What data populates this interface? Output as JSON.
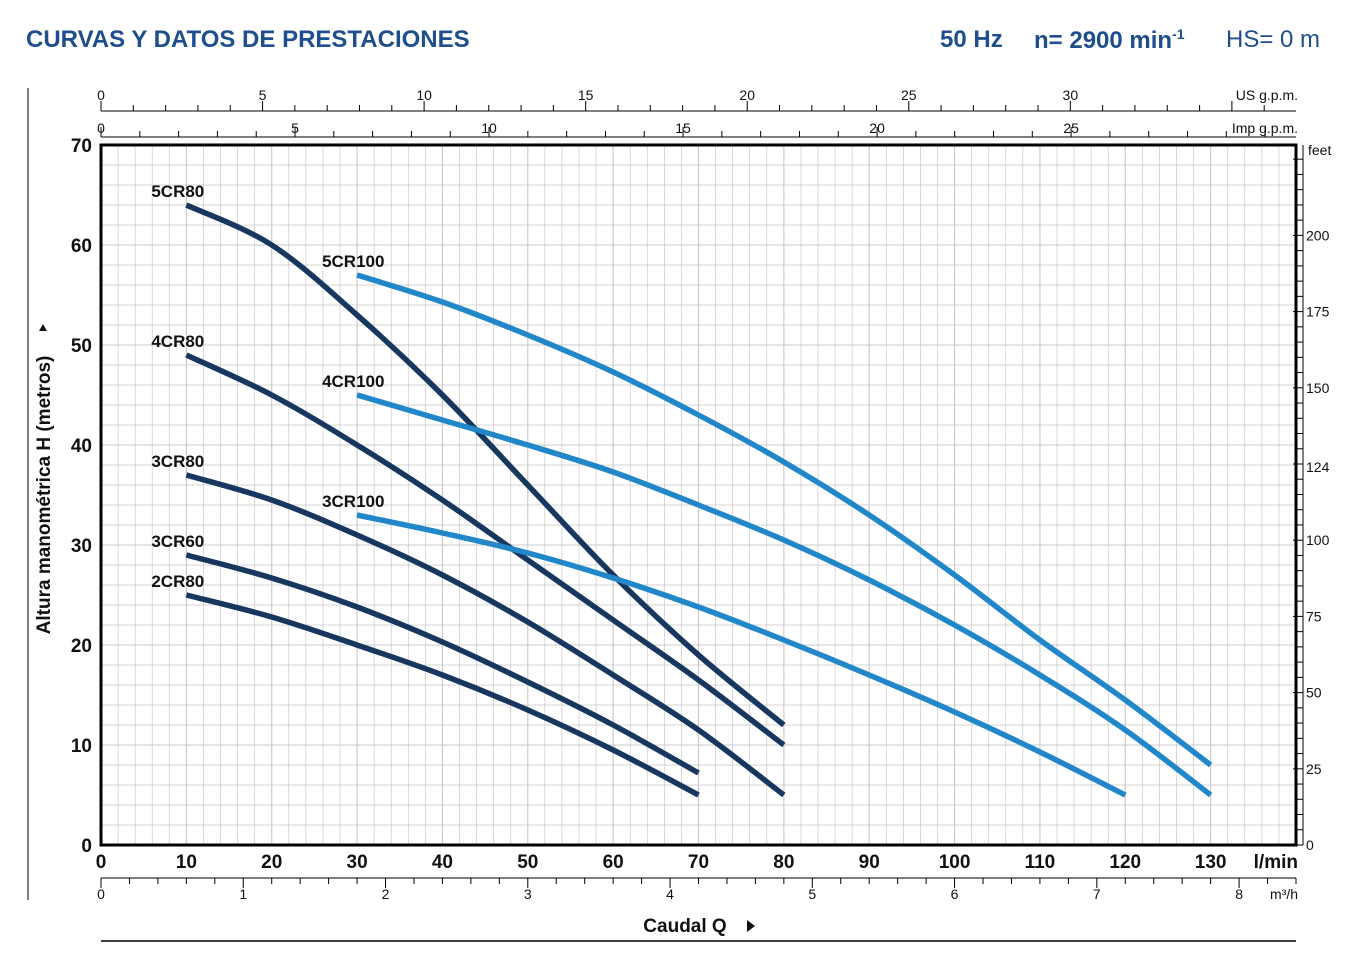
{
  "header": {
    "title": "CURVAS Y DATOS DE PRESTACIONES",
    "frequency": "50 Hz",
    "speed": "n= 2900 min",
    "speed_sup": "-1",
    "hs": "HS= 0 m"
  },
  "colors": {
    "header": "#1f4e8c",
    "cr80_series": "#17375e",
    "cr100_series": "#2287c8",
    "grid": "#c8c8c8",
    "axis": "#000000"
  },
  "chart_data": {
    "type": "line",
    "title": "",
    "xlabel": "Caudal Q",
    "ylabel": "Altura manométrica H (metros)",
    "x_unit": "l/min",
    "xlim": [
      0,
      140
    ],
    "ylim": [
      0,
      70
    ],
    "x_ticks": [
      0,
      10,
      20,
      30,
      40,
      50,
      60,
      70,
      80,
      90,
      100,
      110,
      120,
      130
    ],
    "y_ticks": [
      0,
      10,
      20,
      30,
      40,
      50,
      60,
      70
    ],
    "grid": true,
    "secondary_axes": {
      "us_gpm": {
        "label": "US g.p.m.",
        "ticks": [
          0,
          5,
          10,
          15,
          20,
          25,
          30
        ]
      },
      "imp_gpm": {
        "label": "Imp g.p.m.",
        "ticks": [
          0,
          5,
          10,
          15,
          20,
          25
        ]
      },
      "m3h": {
        "label": "m³/h",
        "ticks": [
          0,
          1,
          2,
          3,
          4,
          5,
          6,
          7,
          8
        ]
      },
      "feet": {
        "label": "feet",
        "ticks": [
          0,
          25,
          50,
          75,
          100,
          124,
          150,
          175,
          200
        ]
      }
    },
    "series": [
      {
        "name": "5CR80",
        "group": "cr80",
        "x": [
          10,
          20,
          30,
          40,
          50,
          60,
          70,
          80
        ],
        "y": [
          64,
          60,
          53,
          45,
          36,
          27,
          19,
          12
        ]
      },
      {
        "name": "4CR80",
        "group": "cr80",
        "x": [
          10,
          20,
          30,
          40,
          50,
          60,
          70,
          80
        ],
        "y": [
          49,
          45,
          40,
          34.5,
          28.5,
          22.5,
          16.5,
          10
        ]
      },
      {
        "name": "3CR80",
        "group": "cr80",
        "x": [
          10,
          20,
          30,
          40,
          50,
          60,
          70,
          80
        ],
        "y": [
          37,
          34.5,
          31,
          27,
          22.3,
          17,
          11.5,
          5
        ]
      },
      {
        "name": "3CR60",
        "group": "cr80",
        "x": [
          10,
          20,
          30,
          40,
          50,
          60,
          70
        ],
        "y": [
          29,
          26.7,
          23.8,
          20.3,
          16.3,
          12,
          7.2
        ]
      },
      {
        "name": "2CR80",
        "group": "cr80",
        "x": [
          10,
          20,
          30,
          40,
          50,
          60,
          70
        ],
        "y": [
          25,
          22.8,
          20,
          17,
          13.5,
          9.5,
          5
        ]
      },
      {
        "name": "5CR100",
        "group": "cr100",
        "x": [
          30,
          40,
          50,
          60,
          70,
          80,
          90,
          100,
          110,
          120,
          130
        ],
        "y": [
          57,
          54.3,
          51,
          47.3,
          43,
          38.3,
          33,
          27,
          20.5,
          14.5,
          8
        ]
      },
      {
        "name": "4CR100",
        "group": "cr100",
        "x": [
          30,
          40,
          50,
          60,
          70,
          80,
          90,
          100,
          110,
          120,
          130
        ],
        "y": [
          45,
          42.5,
          40,
          37.3,
          34,
          30.5,
          26.5,
          22,
          17,
          11.5,
          5
        ]
      },
      {
        "name": "3CR100",
        "group": "cr100",
        "x": [
          30,
          40,
          50,
          60,
          70,
          80,
          90,
          100,
          110,
          120
        ],
        "y": [
          33,
          31.2,
          29.2,
          26.7,
          23.8,
          20.5,
          17,
          13.3,
          9.3,
          5
        ]
      }
    ]
  }
}
